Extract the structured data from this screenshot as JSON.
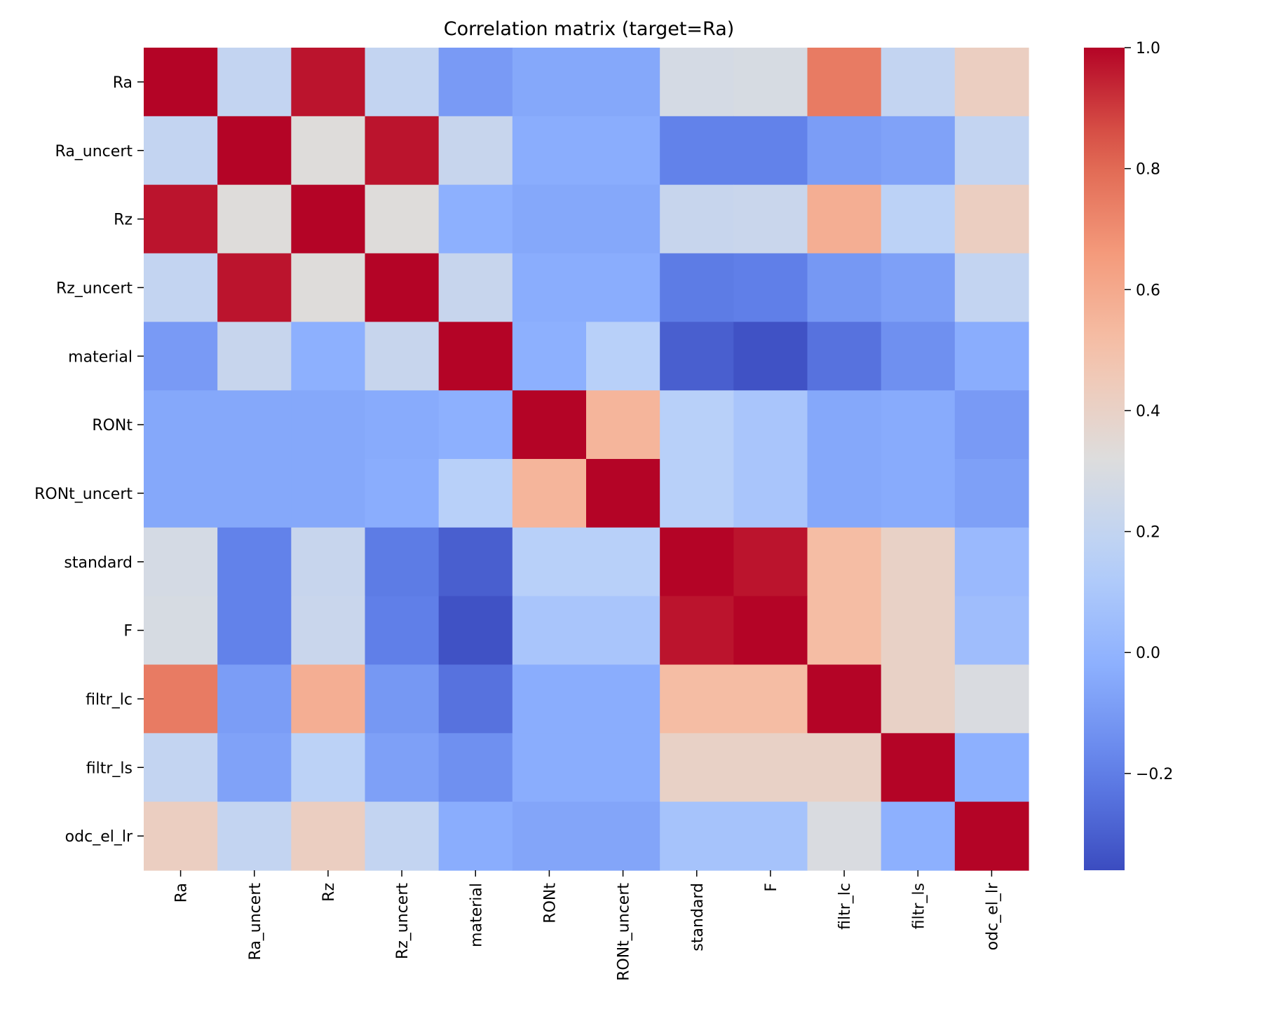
{
  "chart_data": {
    "type": "heatmap",
    "title": "Correlation matrix (target=Ra)",
    "xlabel": "",
    "ylabel": "",
    "variables": [
      "Ra",
      "Ra_uncert",
      "Rz",
      "Rz_uncert",
      "material",
      "RONt",
      "RONt_uncert",
      "standard",
      "F",
      "filtr_lc",
      "filtr_ls",
      "odc_el_lr"
    ],
    "matrix": [
      [
        1.0,
        0.2,
        0.97,
        0.2,
        -0.1,
        -0.05,
        -0.05,
        0.28,
        0.29,
        0.75,
        0.2,
        0.42
      ],
      [
        0.2,
        1.0,
        0.33,
        0.97,
        0.22,
        -0.03,
        -0.03,
        -0.19,
        -0.19,
        -0.09,
        -0.07,
        0.2
      ],
      [
        0.97,
        0.33,
        1.0,
        0.33,
        -0.02,
        -0.05,
        -0.05,
        0.22,
        0.23,
        0.58,
        0.17,
        0.42
      ],
      [
        0.2,
        0.97,
        0.33,
        1.0,
        0.22,
        -0.03,
        -0.03,
        -0.21,
        -0.2,
        -0.11,
        -0.08,
        0.2
      ],
      [
        -0.1,
        0.22,
        -0.02,
        0.22,
        1.0,
        -0.02,
        0.15,
        -0.3,
        -0.34,
        -0.24,
        -0.14,
        -0.03
      ],
      [
        -0.05,
        -0.05,
        -0.05,
        -0.04,
        -0.02,
        1.0,
        0.55,
        0.15,
        0.09,
        -0.05,
        -0.04,
        -0.1
      ],
      [
        -0.05,
        -0.05,
        -0.05,
        -0.03,
        0.15,
        0.55,
        1.0,
        0.15,
        0.09,
        -0.05,
        -0.04,
        -0.08
      ],
      [
        0.28,
        -0.19,
        0.22,
        -0.21,
        -0.3,
        0.15,
        0.15,
        1.0,
        0.97,
        0.52,
        0.4,
        0.03
      ],
      [
        0.29,
        -0.19,
        0.23,
        -0.2,
        -0.34,
        0.09,
        0.09,
        0.97,
        1.0,
        0.52,
        0.4,
        0.05
      ],
      [
        0.75,
        -0.09,
        0.58,
        -0.11,
        -0.24,
        -0.03,
        -0.03,
        0.52,
        0.52,
        1.0,
        0.4,
        0.3
      ],
      [
        0.2,
        -0.07,
        0.17,
        -0.08,
        -0.14,
        -0.03,
        -0.03,
        0.4,
        0.4,
        0.4,
        1.0,
        -0.02
      ],
      [
        0.42,
        0.2,
        0.42,
        0.2,
        -0.03,
        -0.06,
        -0.06,
        0.08,
        0.08,
        0.3,
        -0.02,
        1.0
      ]
    ],
    "colorbar": {
      "colormap": "coolwarm",
      "vmin": -0.36,
      "vmax": 1.0,
      "ticks": [
        1.0,
        0.8,
        0.6,
        0.4,
        0.2,
        0.0,
        -0.2
      ],
      "tick_labels": [
        "1.0",
        "0.8",
        "0.6",
        "0.4",
        "0.2",
        "0.0",
        "−0.2"
      ]
    }
  }
}
